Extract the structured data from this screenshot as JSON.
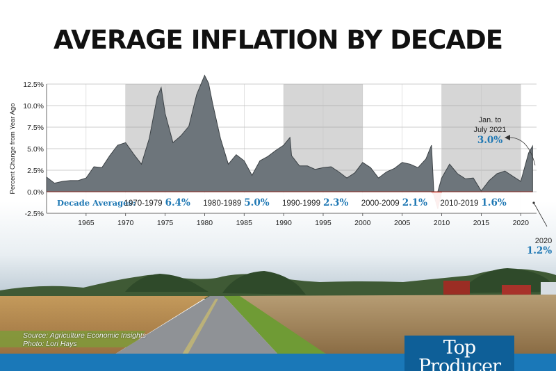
{
  "title": "AVERAGE INFLATION BY DECADE",
  "source": {
    "line1": "Source: Agriculture Economic Insights",
    "line2": "Photo: Lori Hays"
  },
  "logo": {
    "line1": "Top",
    "line2": "Producer"
  },
  "colors": {
    "area_fill": "#6d757b",
    "area_stroke": "#3c4246",
    "negative_fill": "#e0392b",
    "accent_blue": "#1f78b4",
    "shade_band": "#cfcfcf",
    "footer_blue": "#1a78b8"
  },
  "chart_data": {
    "type": "area",
    "title": "AVERAGE INFLATION BY DECADE",
    "ylabel": "Percent Change from Year Ago",
    "xlabel": "",
    "xlim": [
      1960,
      2022
    ],
    "ylim": [
      -2.5,
      12.5
    ],
    "x_ticks": [
      "1965",
      "1970",
      "1975",
      "1980",
      "1985",
      "1990",
      "1995",
      "2000",
      "2005",
      "2010",
      "2015",
      "2020"
    ],
    "y_ticks": [
      "12.5%",
      "10.0%",
      "7.5%",
      "5.0%",
      "2.5%",
      "0.0%",
      "-2.5%"
    ],
    "grid": true,
    "legend_label": "Decade Averages:",
    "decades": [
      {
        "label": "1970-1979",
        "value": "6.4%",
        "shaded": true
      },
      {
        "label": "1980-1989",
        "value": "5.0%",
        "shaded": false
      },
      {
        "label": "1990-1999",
        "value": "2.3%",
        "shaded": true
      },
      {
        "label": "2000-2009",
        "value": "2.1%",
        "shaded": false
      },
      {
        "label": "2010-2019",
        "value": "1.6%",
        "shaded": true
      }
    ],
    "annotations": [
      {
        "label1": "Jan. to",
        "label2": "July 2021",
        "value": "3.0%"
      },
      {
        "label1": "2020",
        "label2": "",
        "value": "1.2%"
      }
    ],
    "series": [
      {
        "x": [
          1960,
          1961,
          1962,
          1963,
          1964,
          1965,
          1966,
          1967,
          1968,
          1969,
          1970,
          1971,
          1972,
          1973,
          1974,
          1974.5,
          1975,
          1976,
          1977,
          1978,
          1979,
          1980,
          1980.5,
          1981,
          1982,
          1983,
          1984,
          1985,
          1986,
          1987,
          1988,
          1989,
          1990,
          1990.8,
          1991,
          1992,
          1993,
          1994,
          1995,
          1996,
          1997,
          1998,
          1999,
          2000,
          2001,
          2002,
          2003,
          2004,
          2005,
          2006,
          2007,
          2008,
          2008.7,
          2009,
          2009.5,
          2010,
          2011,
          2012,
          2013,
          2014,
          2015,
          2016,
          2017,
          2018,
          2019,
          2020,
          2021,
          2021.5
        ],
        "values": [
          1.7,
          1.0,
          1.2,
          1.3,
          1.3,
          1.6,
          2.9,
          2.8,
          4.2,
          5.4,
          5.7,
          4.4,
          3.2,
          6.2,
          11.0,
          12.1,
          9.1,
          5.7,
          6.5,
          7.6,
          11.3,
          13.5,
          12.6,
          10.3,
          6.2,
          3.2,
          4.3,
          3.6,
          1.9,
          3.6,
          4.1,
          4.8,
          5.4,
          6.3,
          4.2,
          3.0,
          3.0,
          2.6,
          2.8,
          2.9,
          2.3,
          1.6,
          2.2,
          3.4,
          2.8,
          1.6,
          2.3,
          2.7,
          3.4,
          3.2,
          2.8,
          3.8,
          5.4,
          -0.4,
          -2.0,
          1.6,
          3.2,
          2.1,
          1.5,
          1.6,
          0.1,
          1.3,
          2.1,
          2.4,
          1.8,
          1.2,
          4.5,
          5.3
        ]
      }
    ]
  }
}
